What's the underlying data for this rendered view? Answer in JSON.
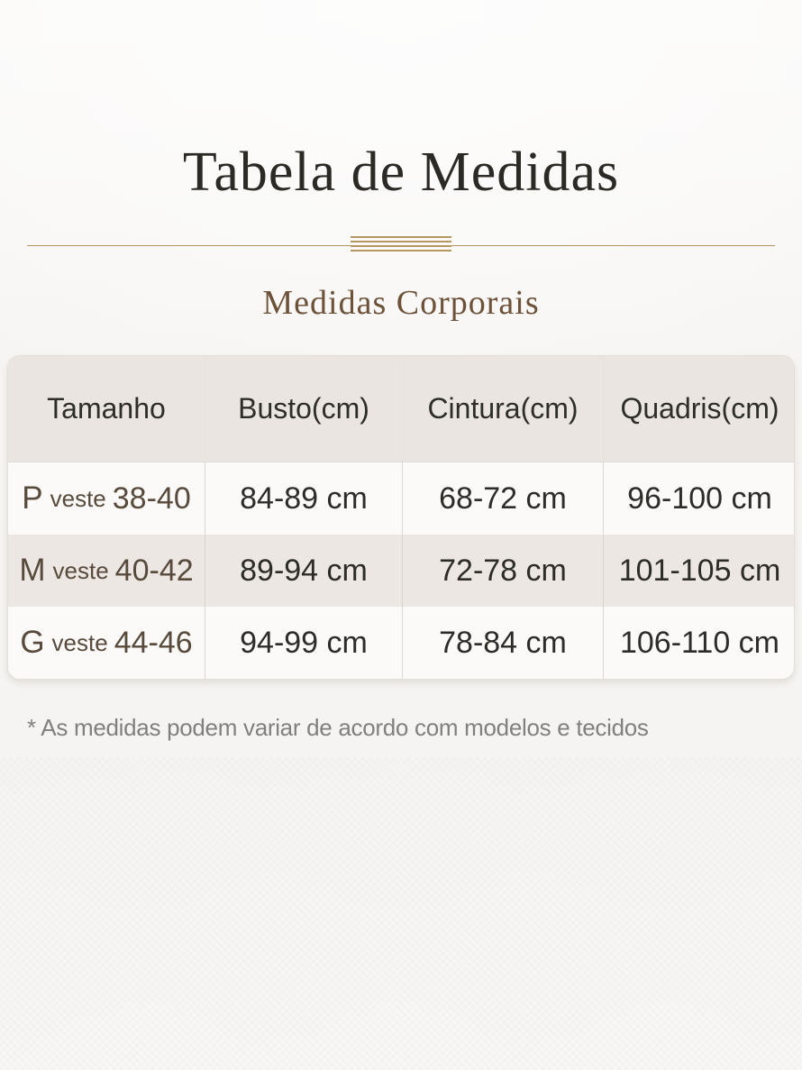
{
  "chart_data": {
    "type": "table",
    "title": "Tabela de Medidas",
    "subtitle": "Medidas Corporais",
    "columns": [
      "Tamanho",
      "Busto(cm)",
      "Cintura(cm)",
      "Quadris(cm)"
    ],
    "rows": [
      {
        "tamanho": {
          "size": "P",
          "label": "veste",
          "range": "38-40"
        },
        "busto": "84-89 cm",
        "cintura": "68-72 cm",
        "quadris": "96-100 cm"
      },
      {
        "tamanho": {
          "size": "M",
          "label": "veste",
          "range": "40-42"
        },
        "busto": "89-94 cm",
        "cintura": "72-78 cm",
        "quadris": "101-105 cm"
      },
      {
        "tamanho": {
          "size": "G",
          "label": "veste",
          "range": "44-46"
        },
        "busto": "94-99 cm",
        "cintura": "78-84 cm",
        "quadris": "106-110 cm"
      }
    ],
    "footnote": "* As medidas podem variar de acordo com modelos e tecidos",
    "layout": {
      "legend": "none",
      "grid": "column-dividers",
      "header_position": "top"
    }
  },
  "colors": {
    "gold": "#b4975f",
    "title_text": "#2b2a25",
    "subtitle_text": "#6d523a",
    "header_bg": "#eae5e1",
    "header_text": "#2f2d28",
    "row_bg": "#fcfaf8",
    "row_alt_bg": "#ece7e2",
    "size_text": "#584a3c",
    "value_text": "#2e2c28",
    "footnote_text": "#81807e"
  }
}
